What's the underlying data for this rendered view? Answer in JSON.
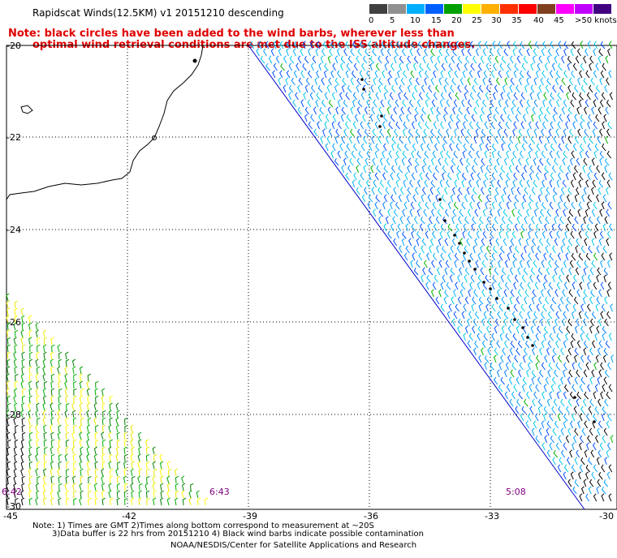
{
  "header": {
    "title": "Rapidscat Winds(12.5KM) v1 20151210 descending",
    "note_line1": "Note: black circles have been added to the wind barbs, wherever less than",
    "note_line2": "optimal wind retrieval conditions are met due to the ISS altitude changes."
  },
  "scale": {
    "labels": [
      "0",
      "5",
      "10",
      "15",
      "20",
      "25",
      "30",
      "35",
      "40",
      "45",
      ">50 knots"
    ],
    "colors": [
      "#404040",
      "#909090",
      "#00b0ff",
      "#0060ff",
      "#00a000",
      "#ffff00",
      "#ffb000",
      "#ff3000",
      "#ff0000",
      "#804020",
      "#ff00ff",
      "#c000ff",
      "#400080"
    ]
  },
  "axes": {
    "lat_labels": [
      "-20",
      "-22",
      "-24",
      "-26",
      "-28",
      "-30"
    ],
    "lon_labels": [
      "-45",
      "-42",
      "-39",
      "-36",
      "-33",
      "-30"
    ]
  },
  "times": {
    "left_pass": "6:42",
    "mid_pass": "6:43",
    "right_pass": "5:08"
  },
  "footer": {
    "line1": "Note: 1) Times are GMT 2)Times along bottom correspond to measurement at ~20S",
    "line2": "3)Data buffer is 22 hrs from 20151210 4) Black wind barbs indicate possible contamination",
    "line3": "NOAA/NESDIS/Center for Satellite Applications and Research"
  }
}
